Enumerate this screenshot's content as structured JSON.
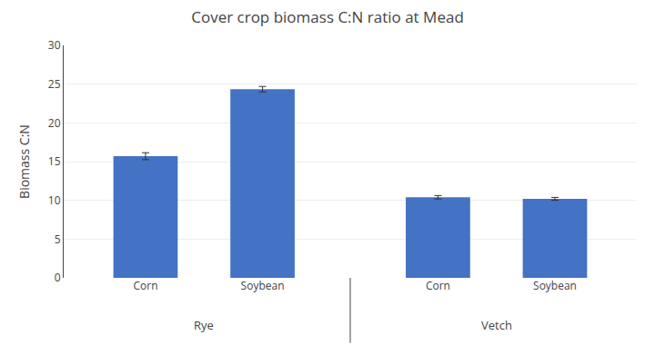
{
  "chart_data": {
    "type": "bar",
    "title": "Cover crop biomass C:N ratio at Mead",
    "ylabel": "Biomass C:N",
    "categories": [
      "Corn",
      "Soybean",
      "Corn",
      "Soybean"
    ],
    "groups": [
      "Rye",
      "Rye",
      "Vetch",
      "Vetch"
    ],
    "values": [
      15.7,
      24.35,
      10.4,
      10.2
    ],
    "errors": [
      0.45,
      0.35,
      0.22,
      0.18
    ],
    "color": "#4472C4",
    "ylim": [
      0,
      30
    ],
    "yticks": [
      0,
      5,
      10,
      15,
      20,
      25,
      30
    ],
    "grid": true
  }
}
